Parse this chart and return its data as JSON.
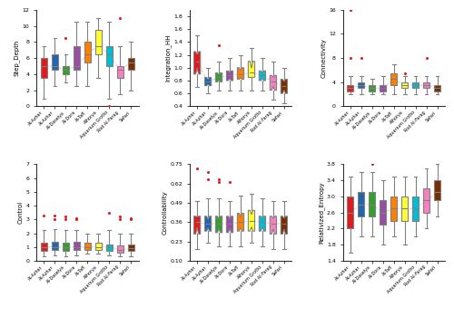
{
  "parks": [
    "Al-Azher",
    "Al-Azhar",
    "Al-Daselya",
    "Al-Dora",
    "Al-Tafl",
    "Alhorya",
    "Aquarium Grotto",
    "Rod Al-Farag",
    "Safari"
  ],
  "colors": [
    "#e31a1c",
    "#2166ac",
    "#33a02c",
    "#984ea3",
    "#ff7f00",
    "#ffff33",
    "#00bcd4",
    "#f781bf",
    "#7b2d00"
  ],
  "step_depth": {
    "medians": [
      5.0,
      5.0,
      4.5,
      5.0,
      6.5,
      7.5,
      6.5,
      4.5,
      5.5
    ],
    "q1": [
      3.5,
      4.5,
      4.0,
      4.5,
      5.5,
      6.5,
      5.0,
      3.5,
      4.5
    ],
    "q3": [
      6.0,
      6.5,
      5.0,
      7.5,
      8.0,
      9.5,
      7.5,
      5.0,
      6.0
    ],
    "whislo": [
      1.0,
      2.5,
      3.0,
      2.5,
      2.5,
      3.5,
      1.0,
      1.5,
      2.0
    ],
    "whishi": [
      7.5,
      8.5,
      6.5,
      10.5,
      10.5,
      11.0,
      10.5,
      7.5,
      8.0
    ],
    "fliers_high": [
      null,
      null,
      [
        8.5
      ],
      null,
      null,
      null,
      null,
      [
        11.0
      ],
      null
    ],
    "fliers_low": [
      null,
      null,
      null,
      null,
      null,
      null,
      [
        0.0
      ],
      null,
      null
    ],
    "notch": false,
    "ylim": [
      0,
      12
    ],
    "yticks": [
      0,
      2,
      4,
      6,
      8,
      10,
      12
    ]
  },
  "integration": {
    "medians": [
      1.1,
      0.78,
      0.85,
      0.88,
      0.9,
      0.92,
      0.88,
      0.78,
      0.72
    ],
    "q1": [
      0.9,
      0.72,
      0.78,
      0.8,
      0.82,
      0.85,
      0.8,
      0.65,
      0.6
    ],
    "q3": [
      1.25,
      0.85,
      0.92,
      0.95,
      1.0,
      1.1,
      0.95,
      0.88,
      0.82
    ],
    "whislo": [
      0.7,
      0.6,
      0.65,
      0.65,
      0.65,
      0.65,
      0.65,
      0.5,
      0.45
    ],
    "whishi": [
      1.5,
      1.0,
      1.1,
      1.15,
      1.2,
      1.3,
      1.15,
      1.1,
      1.0
    ],
    "fliers_high": [
      null,
      null,
      [
        1.35
      ],
      null,
      null,
      null,
      null,
      null,
      null
    ],
    "fliers_low": [
      null,
      null,
      null,
      null,
      null,
      null,
      null,
      null,
      null
    ],
    "notch": true,
    "ylim": [
      0.4,
      1.9
    ],
    "yticks": [
      0.4,
      0.6,
      0.8,
      1.0,
      1.2,
      1.4,
      1.6,
      1.8
    ]
  },
  "connectivity": {
    "medians": [
      3.0,
      3.5,
      3.0,
      3.0,
      4.5,
      3.5,
      3.5,
      3.5,
      3.0
    ],
    "q1": [
      2.5,
      3.0,
      2.5,
      2.5,
      3.5,
      3.0,
      3.0,
      3.0,
      2.5
    ],
    "q3": [
      3.5,
      4.0,
      3.5,
      3.5,
      5.5,
      4.0,
      4.0,
      4.0,
      3.5
    ],
    "whislo": [
      2.0,
      2.0,
      2.0,
      2.0,
      2.0,
      2.0,
      2.0,
      2.0,
      2.0
    ],
    "whishi": [
      5.0,
      5.0,
      4.5,
      5.0,
      7.0,
      5.0,
      5.0,
      5.0,
      5.0
    ],
    "fliers_high": [
      [
        8.0
      ],
      [
        8.0
      ],
      null,
      null,
      null,
      [
        5.5
      ],
      null,
      [
        8.0
      ],
      null
    ],
    "fliers_extra": [
      [
        16.0
      ],
      null,
      null,
      null,
      null,
      null,
      null,
      null,
      null
    ],
    "notch": false,
    "ylim": [
      0,
      16
    ],
    "yticks": [
      0,
      4,
      8,
      12,
      16
    ]
  },
  "control": {
    "medians": [
      1.0,
      1.0,
      1.0,
      1.0,
      1.0,
      1.0,
      1.0,
      0.8,
      0.9
    ],
    "q1": [
      0.7,
      0.8,
      0.7,
      0.8,
      0.8,
      0.8,
      0.7,
      0.6,
      0.7
    ],
    "q3": [
      1.3,
      1.4,
      1.3,
      1.4,
      1.3,
      1.3,
      1.2,
      1.1,
      1.2
    ],
    "whislo": [
      0.3,
      0.4,
      0.3,
      0.4,
      0.5,
      0.5,
      0.4,
      0.3,
      0.3
    ],
    "whishi": [
      2.2,
      2.3,
      2.2,
      2.2,
      2.0,
      2.0,
      2.2,
      2.0,
      2.0
    ],
    "fliers_high": [
      [
        3.3
      ],
      [
        3.0,
        3.3
      ],
      [
        3.0,
        3.2
      ],
      [
        3.0,
        3.1
      ],
      null,
      null,
      [
        3.5
      ],
      [
        3.0,
        3.2
      ],
      [
        3.0,
        3.1
      ]
    ],
    "notch": false,
    "ylim": [
      0,
      7
    ],
    "yticks": [
      0,
      1,
      2,
      3,
      4,
      5,
      6,
      7
    ]
  },
  "controllability": {
    "medians": [
      0.36,
      0.35,
      0.35,
      0.35,
      0.36,
      0.37,
      0.36,
      0.35,
      0.35
    ],
    "q1": [
      0.28,
      0.3,
      0.29,
      0.29,
      0.3,
      0.3,
      0.3,
      0.28,
      0.28
    ],
    "q3": [
      0.4,
      0.4,
      0.4,
      0.4,
      0.42,
      0.44,
      0.4,
      0.4,
      0.4
    ],
    "whislo": [
      0.18,
      0.22,
      0.2,
      0.2,
      0.2,
      0.22,
      0.2,
      0.18,
      0.18
    ],
    "whishi": [
      0.5,
      0.52,
      0.52,
      0.5,
      0.54,
      0.55,
      0.52,
      0.5,
      0.5
    ],
    "fliers_high": [
      [
        0.72
      ],
      [
        0.65,
        0.7
      ],
      [
        0.63,
        0.65
      ],
      [
        0.63
      ],
      null,
      null,
      null,
      null,
      null
    ],
    "notch": true,
    "ylim": [
      0.1,
      0.75
    ],
    "yticks": [
      0.1,
      0.23,
      0.36,
      0.49,
      0.62,
      0.75
    ]
  },
  "rel_entropy": {
    "medians": [
      2.6,
      2.8,
      2.8,
      2.6,
      2.7,
      2.7,
      2.7,
      2.9,
      3.1
    ],
    "q1": [
      2.2,
      2.5,
      2.5,
      2.3,
      2.4,
      2.4,
      2.4,
      2.6,
      2.9
    ],
    "q3": [
      3.0,
      3.1,
      3.1,
      2.9,
      3.0,
      3.0,
      3.0,
      3.2,
      3.4
    ],
    "whislo": [
      1.6,
      2.0,
      2.0,
      1.8,
      2.0,
      1.8,
      2.0,
      2.2,
      2.5
    ],
    "whishi": [
      3.5,
      3.6,
      3.6,
      3.4,
      3.5,
      3.5,
      3.5,
      3.7,
      3.8
    ],
    "fliers_high": [
      null,
      null,
      [
        3.8
      ],
      null,
      null,
      null,
      null,
      null,
      null
    ],
    "notch": false,
    "ylim": [
      1.4,
      3.8
    ],
    "yticks": [
      1.4,
      1.8,
      2.2,
      2.6,
      3.0,
      3.4,
      3.8
    ]
  }
}
